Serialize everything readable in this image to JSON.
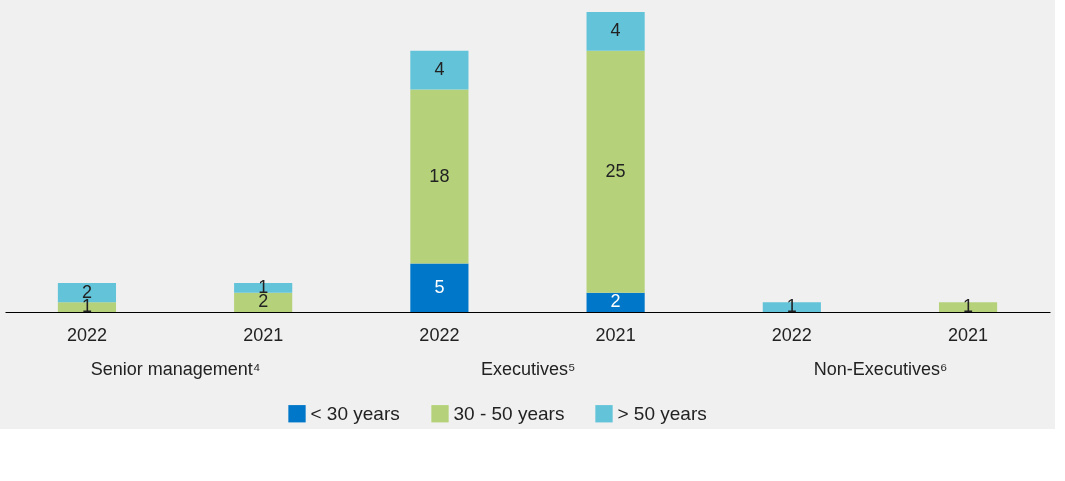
{
  "chart_data": {
    "type": "bar",
    "stacked": true,
    "data_labels": true,
    "legend": "bottom",
    "grid": false,
    "categories": [
      "2022",
      "2021",
      "2022",
      "2021",
      "2022",
      "2021"
    ],
    "annotations": [
      "Senior management⁴",
      "Executives⁵",
      "Non-Executives⁶"
    ],
    "series": [
      {
        "name": "< 30 years",
        "color": "#0077c8",
        "values": [
          null,
          null,
          5,
          2,
          null,
          null
        ]
      },
      {
        "name": "30 - 50 years",
        "color": "#b5d27a",
        "values": [
          1,
          2,
          18,
          25,
          null,
          1
        ]
      },
      {
        "name": "> 50 years",
        "color": "#62c3d9",
        "values": [
          2,
          1,
          4,
          4,
          1,
          null
        ]
      }
    ]
  }
}
